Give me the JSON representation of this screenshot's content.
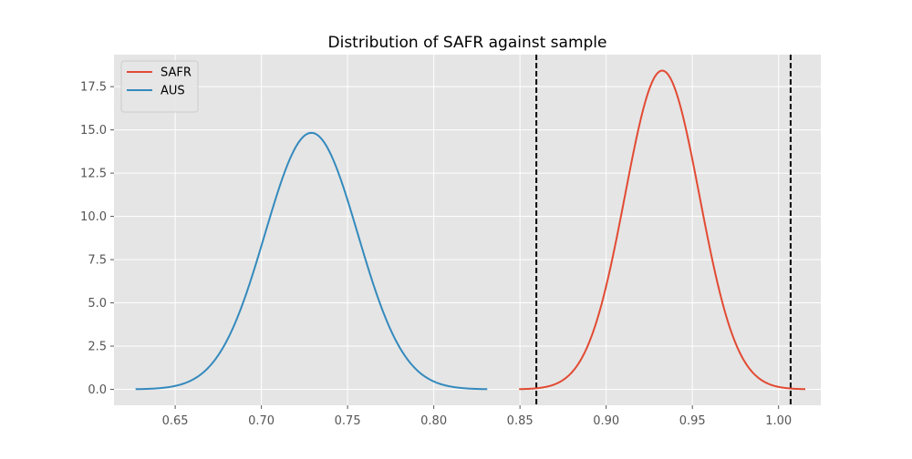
{
  "chart_data": {
    "type": "line",
    "title": "Distribution of SAFR against sample",
    "xlabel": "",
    "ylabel": "",
    "xlim": [
      0.6145,
      1.0245
    ],
    "ylim": [
      -0.92,
      19.35
    ],
    "x_ticks": [
      0.65,
      0.7,
      0.75,
      0.8,
      0.85,
      0.9,
      0.95,
      1.0
    ],
    "x_tick_labels": [
      "0.65",
      "0.70",
      "0.75",
      "0.80",
      "0.85",
      "0.90",
      "0.95",
      "1.00"
    ],
    "y_ticks": [
      0,
      2.5,
      5,
      7.5,
      10,
      12.5,
      15,
      17.5
    ],
    "y_tick_labels": [
      "0.0",
      "2.5",
      "5.0",
      "7.5",
      "10.0",
      "12.5",
      "15.0",
      "17.5"
    ],
    "grid": true,
    "legend_position": "top-left",
    "series": [
      {
        "name": "SAFR",
        "color": "#E24A33",
        "curve": "normal-density",
        "mean": 0.9325,
        "sd": 0.02165,
        "x_range": [
          0.8495,
          1.0155
        ]
      },
      {
        "name": "AUS",
        "color": "#348ABD",
        "curve": "normal-density",
        "mean": 0.729,
        "sd": 0.0269,
        "x_range": [
          0.627,
          0.831
        ]
      }
    ],
    "vlines": [
      {
        "x": 0.8595,
        "style": "dashed",
        "color": "#000000"
      },
      {
        "x": 1.007,
        "style": "dashed",
        "color": "#000000"
      }
    ]
  }
}
